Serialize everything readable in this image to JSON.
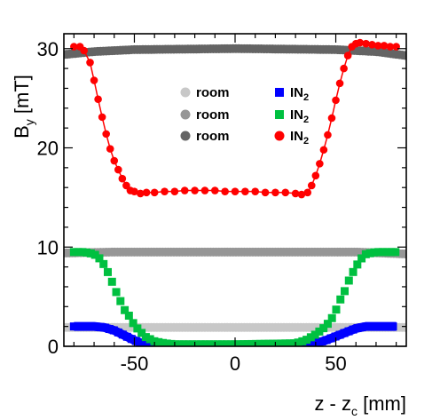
{
  "chart_data": {
    "type": "scatter",
    "xlim": [
      -85,
      85
    ],
    "ylim": [
      0,
      31.5
    ],
    "grid": false,
    "legend_position": "top-center",
    "x_ticks": [
      "-50",
      "0",
      "50"
    ],
    "y_ticks": [
      "0",
      "10",
      "20",
      "30"
    ],
    "xlabel": {
      "main": "z - z",
      "sub": "c",
      "unit": " [mm]"
    },
    "ylabel": {
      "main": "B",
      "sub": "y",
      "unit": " [mT]"
    },
    "series": [
      {
        "name": "room",
        "color": "#c8c8c8",
        "marker": "circle",
        "x": [
          -85,
          85
        ],
        "y": [
          1.9,
          1.9
        ]
      },
      {
        "name": "room",
        "color": "#969696",
        "marker": "circle",
        "x": [
          -85,
          -60,
          0,
          60,
          85
        ],
        "y": [
          9.4,
          9.5,
          9.5,
          9.5,
          9.3
        ]
      },
      {
        "name": "room",
        "color": "#646464",
        "marker": "circle",
        "x": [
          -85,
          -70,
          -50,
          0,
          50,
          70,
          85
        ],
        "y": [
          29.4,
          29.7,
          29.9,
          30.0,
          29.9,
          29.7,
          29.3
        ]
      },
      {
        "name": "IN",
        "name_sub": "2",
        "color": "#0000ff",
        "marker": "square",
        "x": [
          -80,
          -70,
          -65,
          -60,
          -55,
          -50,
          -45,
          -40,
          -30,
          0,
          30,
          35,
          40,
          45,
          50,
          55,
          60,
          65,
          70,
          80
        ],
        "y": [
          2.0,
          2.0,
          1.9,
          1.6,
          1.1,
          0.6,
          0.2,
          0.0,
          -0.1,
          -0.1,
          0.0,
          0.1,
          0.3,
          0.6,
          1.0,
          1.4,
          1.8,
          2.0,
          2.0,
          2.0
        ]
      },
      {
        "name": "IN",
        "name_sub": "2",
        "color": "#00c040",
        "marker": "square",
        "x": [
          -80,
          -75,
          -70,
          -67,
          -65,
          -62,
          -60,
          -57,
          -55,
          -52,
          -50,
          -47,
          -45,
          -40,
          -35,
          -30,
          0,
          30,
          35,
          40,
          45,
          48,
          50,
          52,
          55,
          57,
          60,
          62,
          65,
          70,
          75,
          80
        ],
        "y": [
          9.5,
          9.5,
          9.3,
          8.8,
          8.2,
          7.0,
          5.9,
          4.6,
          3.7,
          2.9,
          2.1,
          1.5,
          1.0,
          0.5,
          0.3,
          0.2,
          0.2,
          0.3,
          0.6,
          1.2,
          2.0,
          2.8,
          3.6,
          4.6,
          5.8,
          6.9,
          8.0,
          8.7,
          9.3,
          9.5,
          9.5,
          9.5
        ],
        "band_half_width": 0.35
      },
      {
        "name": "IN",
        "name_sub": "2",
        "color": "#ff0000",
        "marker": "circle",
        "x": [
          -80,
          -77,
          -75,
          -72,
          -70,
          -68,
          -66,
          -64,
          -62,
          -60,
          -58,
          -56,
          -54,
          -52,
          -50,
          -47,
          -44,
          -40,
          -35,
          -30,
          -25,
          -20,
          -15,
          -10,
          -5,
          0,
          5,
          10,
          15,
          20,
          25,
          30,
          33,
          36,
          38,
          40,
          42,
          44,
          46,
          48,
          50,
          52,
          54,
          56,
          58,
          60,
          62,
          65,
          68,
          71,
          74,
          77,
          80
        ],
        "y": [
          30.2,
          30.2,
          29.8,
          28.6,
          26.8,
          24.9,
          23.1,
          21.4,
          19.9,
          18.7,
          17.8,
          16.9,
          16.2,
          15.7,
          15.6,
          15.4,
          15.5,
          15.5,
          15.6,
          15.6,
          15.7,
          15.7,
          15.7,
          15.7,
          15.6,
          15.6,
          15.6,
          15.6,
          15.5,
          15.5,
          15.5,
          15.4,
          15.3,
          15.5,
          16.2,
          17.2,
          18.4,
          19.8,
          21.3,
          23.0,
          24.8,
          26.5,
          28.0,
          29.3,
          30.2,
          30.5,
          30.6,
          30.5,
          30.4,
          30.3,
          30.3,
          30.2,
          30.2
        ]
      }
    ]
  }
}
